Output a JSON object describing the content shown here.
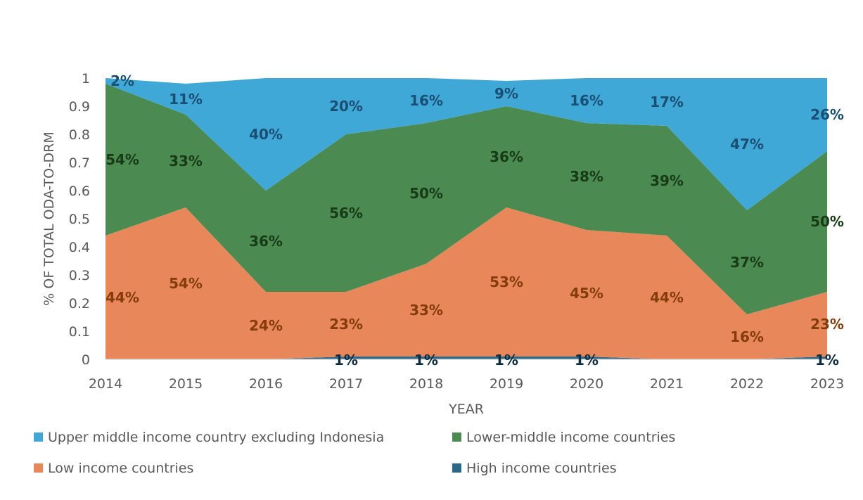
{
  "chart_data": {
    "type": "area",
    "stacked": true,
    "title": "",
    "xlabel": "YEAR",
    "ylabel": "% OF TOTAL ODA-TO-DRM",
    "ylim": [
      0,
      1
    ],
    "yticks": [
      "0",
      "0.1",
      "0.2",
      "0.3",
      "0.4",
      "0.5",
      "0.6",
      "0.7",
      "0.8",
      "0.9",
      "1"
    ],
    "categories": [
      "2014",
      "2015",
      "2016",
      "2017",
      "2018",
      "2019",
      "2020",
      "2021",
      "2022",
      "2023"
    ],
    "grid": false,
    "legend_position": "bottom",
    "series": [
      {
        "name": "High income countries",
        "color": "#2a6888",
        "label_color": "#0d2c40",
        "values": [
          0,
          0,
          0,
          0.01,
          0.01,
          0.01,
          0.01,
          0,
          0,
          0.01
        ],
        "labels": [
          "",
          "",
          "",
          "1%",
          "1%",
          "1%",
          "1%",
          "",
          "",
          "1%"
        ]
      },
      {
        "name": "Low income countries",
        "color": "#e8875a",
        "label_color": "#843c0c",
        "values": [
          0.44,
          0.54,
          0.24,
          0.23,
          0.33,
          0.53,
          0.45,
          0.44,
          0.16,
          0.23
        ],
        "labels": [
          "44%",
          "54%",
          "24%",
          "23%",
          "33%",
          "53%",
          "45%",
          "44%",
          "16%",
          "23%"
        ]
      },
      {
        "name": "Lower-middle income countries",
        "color": "#4b8a50",
        "label_color": "#173b17",
        "values": [
          0.54,
          0.33,
          0.36,
          0.56,
          0.5,
          0.36,
          0.38,
          0.39,
          0.37,
          0.5
        ],
        "labels": [
          "54%",
          "33%",
          "36%",
          "56%",
          "50%",
          "36%",
          "38%",
          "39%",
          "37%",
          "50%"
        ]
      },
      {
        "name": "Upper middle income country excluding Indonesia",
        "color": "#3fa8d6",
        "label_color": "#1a4f73",
        "values": [
          0.02,
          0.11,
          0.4,
          0.2,
          0.16,
          0.09,
          0.16,
          0.17,
          0.47,
          0.26
        ],
        "labels": [
          "2%",
          "11%",
          "40%",
          "20%",
          "16%",
          "9%",
          "16%",
          "17%",
          "47%",
          "26%"
        ]
      }
    ],
    "legend_order": [
      3,
      2,
      1,
      0
    ]
  }
}
